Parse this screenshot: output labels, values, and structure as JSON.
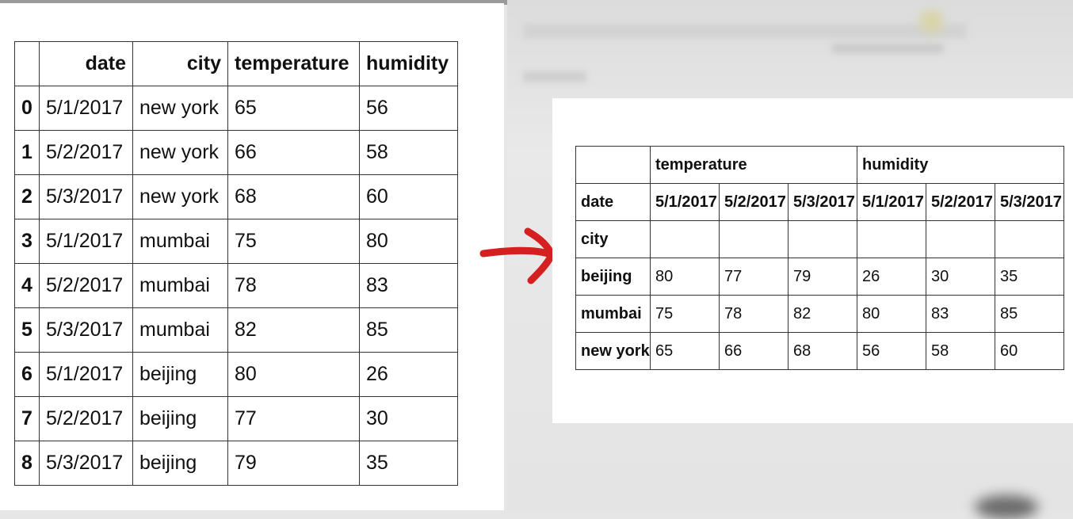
{
  "left_table": {
    "columns": [
      "",
      "date",
      "city",
      "temperature",
      "humidity"
    ],
    "rows": [
      [
        "0",
        "5/1/2017",
        "new york",
        "65",
        "56"
      ],
      [
        "1",
        "5/2/2017",
        "new york",
        "66",
        "58"
      ],
      [
        "2",
        "5/3/2017",
        "new york",
        "68",
        "60"
      ],
      [
        "3",
        "5/1/2017",
        "mumbai",
        "75",
        "80"
      ],
      [
        "4",
        "5/2/2017",
        "mumbai",
        "78",
        "83"
      ],
      [
        "5",
        "5/3/2017",
        "mumbai",
        "82",
        "85"
      ],
      [
        "6",
        "5/1/2017",
        "beijing",
        "80",
        "26"
      ],
      [
        "7",
        "5/2/2017",
        "beijing",
        "77",
        "30"
      ],
      [
        "8",
        "5/3/2017",
        "beijing",
        "79",
        "35"
      ]
    ]
  },
  "right_table": {
    "top_headers": [
      "temperature",
      "humidity"
    ],
    "column_index_label": "date",
    "dates": [
      "5/1/2017",
      "5/2/2017",
      "5/3/2017",
      "5/1/2017",
      "5/2/2017",
      "5/3/2017"
    ],
    "row_index_label": "city",
    "rows": [
      {
        "city": "beijing",
        "values": [
          "80",
          "77",
          "79",
          "26",
          "30",
          "35"
        ]
      },
      {
        "city": "mumbai",
        "values": [
          "75",
          "78",
          "82",
          "80",
          "83",
          "85"
        ]
      },
      {
        "city": "new york",
        "values": [
          "65",
          "66",
          "68",
          "56",
          "58",
          "60"
        ]
      }
    ]
  },
  "colors": {
    "arrow": "#d42020",
    "border": "#333333"
  },
  "icons": {
    "arrow": "arrow-right-icon"
  }
}
